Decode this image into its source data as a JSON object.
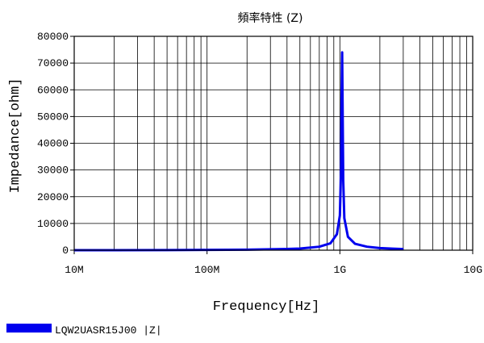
{
  "chart_data": {
    "type": "line",
    "title": "頻率特性 (Z)",
    "xlabel": "Frequency[Hz]",
    "ylabel": "Impedance[ohm]",
    "x_scale": "log",
    "xlim": [
      10000000,
      10000000000
    ],
    "ylim": [
      0,
      80000
    ],
    "x_ticks": [
      {
        "value": 10000000,
        "label": "10M"
      },
      {
        "value": 100000000,
        "label": "100M"
      },
      {
        "value": 1000000000,
        "label": "1G"
      },
      {
        "value": 10000000000,
        "label": "10G"
      }
    ],
    "y_ticks": [
      {
        "value": 0,
        "label": "0"
      },
      {
        "value": 10000,
        "label": "10000"
      },
      {
        "value": 20000,
        "label": "20000"
      },
      {
        "value": 30000,
        "label": "30000"
      },
      {
        "value": 40000,
        "label": "40000"
      },
      {
        "value": 50000,
        "label": "50000"
      },
      {
        "value": 60000,
        "label": "60000"
      },
      {
        "value": 70000,
        "label": "70000"
      },
      {
        "value": 80000,
        "label": "80000"
      }
    ],
    "grid": true,
    "legend_position": "bottom-left",
    "series": [
      {
        "name": "LQW2UASR15J00 |Z|",
        "color": "#0000ee",
        "points": [
          {
            "x": 10000000,
            "y": 10
          },
          {
            "x": 20000000,
            "y": 19
          },
          {
            "x": 50000000,
            "y": 48
          },
          {
            "x": 100000000,
            "y": 97
          },
          {
            "x": 200000000,
            "y": 200
          },
          {
            "x": 400000000,
            "y": 450
          },
          {
            "x": 500000000,
            "y": 620
          },
          {
            "x": 700000000,
            "y": 1300
          },
          {
            "x": 850000000,
            "y": 2600
          },
          {
            "x": 950000000,
            "y": 6000
          },
          {
            "x": 1000000000,
            "y": 13000
          },
          {
            "x": 1020000000,
            "y": 30000
          },
          {
            "x": 1030000000,
            "y": 55000
          },
          {
            "x": 1040000000,
            "y": 74000
          },
          {
            "x": 1050000000,
            "y": 50000
          },
          {
            "x": 1060000000,
            "y": 26000
          },
          {
            "x": 1080000000,
            "y": 12000
          },
          {
            "x": 1150000000,
            "y": 5000
          },
          {
            "x": 1300000000,
            "y": 2400
          },
          {
            "x": 1600000000,
            "y": 1300
          },
          {
            "x": 2000000000,
            "y": 800
          },
          {
            "x": 2500000000,
            "y": 550
          },
          {
            "x": 3000000000,
            "y": 420
          }
        ]
      }
    ]
  }
}
